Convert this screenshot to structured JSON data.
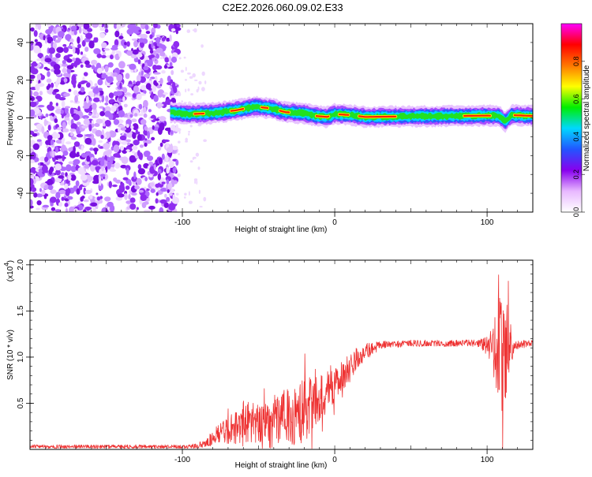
{
  "figure_title": "C2E2.2026.060.09.02.E33",
  "chart_data": [
    {
      "type": "heatmap",
      "title": "C2E2.2026.060.09.02.E33",
      "xlabel": "Height of straight line (km)",
      "ylabel": "Frequency (Hz)",
      "xlim": [
        -200,
        130
      ],
      "ylim": [
        -50,
        50
      ],
      "x_ticks": [
        -100,
        0,
        100
      ],
      "x_tick_labels": [
        "-100",
        "0",
        "100"
      ],
      "y_ticks": [
        -40,
        -20,
        0,
        20,
        40
      ],
      "y_tick_labels": [
        "-40",
        "-20",
        "0",
        "20",
        "40"
      ],
      "noise_region_x": [
        -200,
        -103
      ],
      "signal_start_x": -108,
      "trace_center_hz": [
        {
          "x": -108,
          "y": 3
        },
        {
          "x": -95,
          "y": 2
        },
        {
          "x": -80,
          "y": 2.5
        },
        {
          "x": -65,
          "y": 4
        },
        {
          "x": -52,
          "y": 6
        },
        {
          "x": -42,
          "y": 5
        },
        {
          "x": -32,
          "y": 3
        },
        {
          "x": -20,
          "y": 2.5
        },
        {
          "x": -12,
          "y": 1
        },
        {
          "x": -5,
          "y": 0.5
        },
        {
          "x": 0,
          "y": 2
        },
        {
          "x": 10,
          "y": 1.5
        },
        {
          "x": 20,
          "y": 0.5
        },
        {
          "x": 50,
          "y": 0.8
        },
        {
          "x": 80,
          "y": 1
        },
        {
          "x": 100,
          "y": 1.2
        },
        {
          "x": 108,
          "y": 1
        },
        {
          "x": 112,
          "y": -2
        },
        {
          "x": 116,
          "y": 1.5
        },
        {
          "x": 130,
          "y": 1
        }
      ],
      "colorbar": {
        "label": "Normalized spectral amplitude",
        "range": [
          0,
          1
        ],
        "ticks": [
          "0.0",
          "0.2",
          "0.4",
          "0.6",
          "0.8"
        ],
        "tick_values": [
          0,
          0.2,
          0.4,
          0.6,
          0.8
        ],
        "colors": [
          "#ffffff",
          "#e8b8ff",
          "#8800ee",
          "#2255ff",
          "#00d8ff",
          "#00ee00",
          "#ffff00",
          "#ff7700",
          "#ff0000",
          "#ff00ff"
        ]
      }
    },
    {
      "type": "line",
      "xlabel": "Height of straight line (km)",
      "ylabel": "SNR (10 * v/v)",
      "scale_note": "(x10",
      "scale_exponent": "4",
      "scale_close": ")",
      "xlim": [
        -200,
        130
      ],
      "ylim": [
        0,
        2.05
      ],
      "x_ticks": [
        -100,
        0,
        100
      ],
      "x_tick_labels": [
        "-100",
        "0",
        "100"
      ],
      "y_ticks": [
        0.5,
        1.0,
        1.5,
        2.0
      ],
      "y_tick_labels": [
        "0.5",
        "1.0",
        "1.5",
        "2.0"
      ],
      "line_color": "#ee3333",
      "series": [
        {
          "name": "SNR",
          "envelope_points": [
            {
              "x": -200,
              "mean": 0.03,
              "amp": 0.02
            },
            {
              "x": -95,
              "mean": 0.03,
              "amp": 0.02
            },
            {
              "x": -85,
              "mean": 0.06,
              "amp": 0.04
            },
            {
              "x": -78,
              "mean": 0.15,
              "amp": 0.1
            },
            {
              "x": -70,
              "mean": 0.2,
              "amp": 0.15
            },
            {
              "x": -60,
              "mean": 0.28,
              "amp": 0.25
            },
            {
              "x": -50,
              "mean": 0.27,
              "amp": 0.22
            },
            {
              "x": -40,
              "mean": 0.3,
              "amp": 0.3
            },
            {
              "x": -30,
              "mean": 0.35,
              "amp": 0.32
            },
            {
              "x": -20,
              "mean": 0.42,
              "amp": 0.35
            },
            {
              "x": -10,
              "mean": 0.55,
              "amp": 0.25
            },
            {
              "x": 0,
              "mean": 0.7,
              "amp": 0.18
            },
            {
              "x": 10,
              "mean": 0.88,
              "amp": 0.18
            },
            {
              "x": 20,
              "mean": 1.05,
              "amp": 0.1
            },
            {
              "x": 30,
              "mean": 1.13,
              "amp": 0.04
            },
            {
              "x": 50,
              "mean": 1.15,
              "amp": 0.035
            },
            {
              "x": 80,
              "mean": 1.15,
              "amp": 0.035
            },
            {
              "x": 95,
              "mean": 1.15,
              "amp": 0.04
            },
            {
              "x": 102,
              "mean": 1.12,
              "amp": 0.15
            },
            {
              "x": 106,
              "mean": 1.1,
              "amp": 0.45
            },
            {
              "x": 110,
              "mean": 1.12,
              "amp": 0.8
            },
            {
              "x": 114,
              "mean": 1.12,
              "amp": 0.4
            },
            {
              "x": 118,
              "mean": 1.14,
              "amp": 0.06
            },
            {
              "x": 130,
              "mean": 1.15,
              "amp": 0.03
            }
          ]
        }
      ]
    }
  ]
}
